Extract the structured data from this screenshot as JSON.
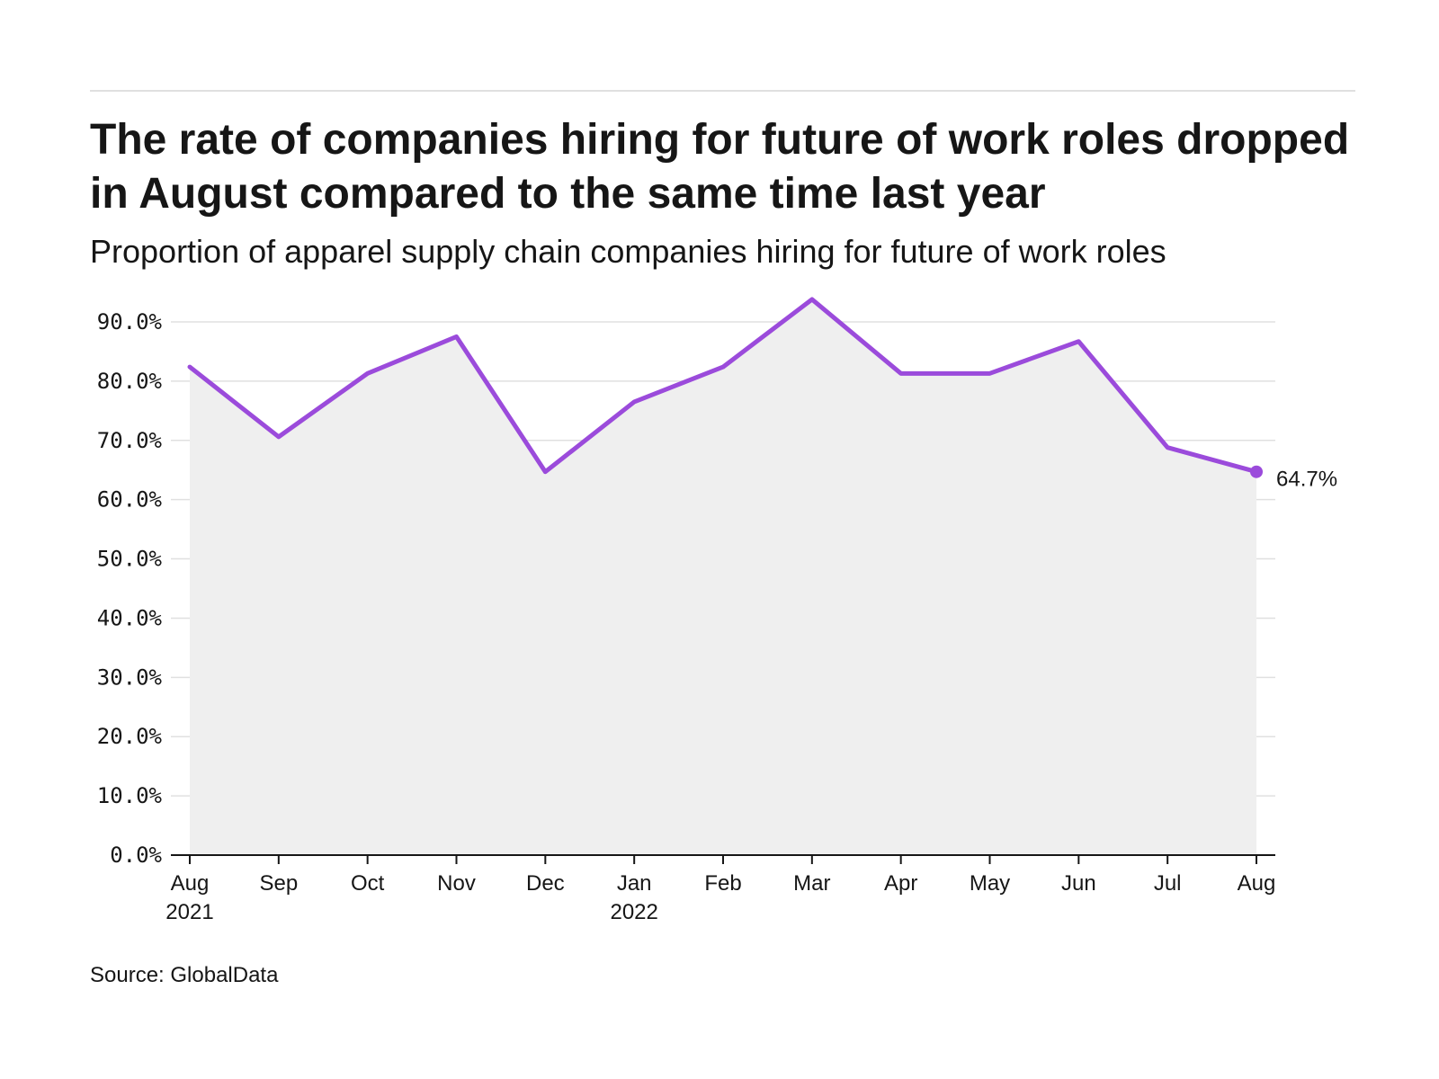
{
  "header": {
    "title": "The rate of companies hiring for future of work roles dropped in August compared to the same time last year",
    "subtitle": "Proportion of apparel supply chain companies hiring for future of work roles"
  },
  "footer": {
    "source": "Source: GlobalData"
  },
  "colors": {
    "line": "#9b4bdb",
    "area": "#efefef",
    "grid": "#e0e0e0",
    "axis": "#161616"
  },
  "chart_data": {
    "type": "area",
    "title": "The rate of companies hiring for future of work roles dropped in August compared to the same time last year",
    "subtitle": "Proportion of apparel supply chain companies hiring for future of work roles",
    "xlabel": "",
    "ylabel": "",
    "ylim": [
      0,
      90
    ],
    "yticks": [
      0,
      10,
      20,
      30,
      40,
      50,
      60,
      70,
      80,
      90
    ],
    "ytick_labels": [
      "0.0%",
      "10.0%",
      "20.0%",
      "30.0%",
      "40.0%",
      "50.0%",
      "60.0%",
      "70.0%",
      "80.0%",
      "90.0%"
    ],
    "categories": [
      "Aug 2021",
      "Sep 2021",
      "Oct 2021",
      "Nov 2021",
      "Dec 2021",
      "Jan 2022",
      "Feb 2022",
      "Mar 2022",
      "Apr 2022",
      "May 2022",
      "Jun 2022",
      "Jul 2022",
      "Aug 2022"
    ],
    "tick_labels": [
      [
        "Aug",
        "2021"
      ],
      [
        "Sep"
      ],
      [
        "Oct"
      ],
      [
        "Nov"
      ],
      [
        "Dec"
      ],
      [
        "Jan",
        "2022"
      ],
      [
        "Feb"
      ],
      [
        "Mar"
      ],
      [
        "Apr"
      ],
      [
        "May"
      ],
      [
        "Jun"
      ],
      [
        "Jul"
      ],
      [
        "Aug"
      ]
    ],
    "values": [
      82.4,
      70.6,
      81.3,
      87.5,
      64.7,
      76.5,
      82.4,
      93.8,
      81.3,
      81.3,
      86.7,
      68.8,
      64.7
    ],
    "end_label": "64.7%",
    "grid": true,
    "legend": "none"
  }
}
